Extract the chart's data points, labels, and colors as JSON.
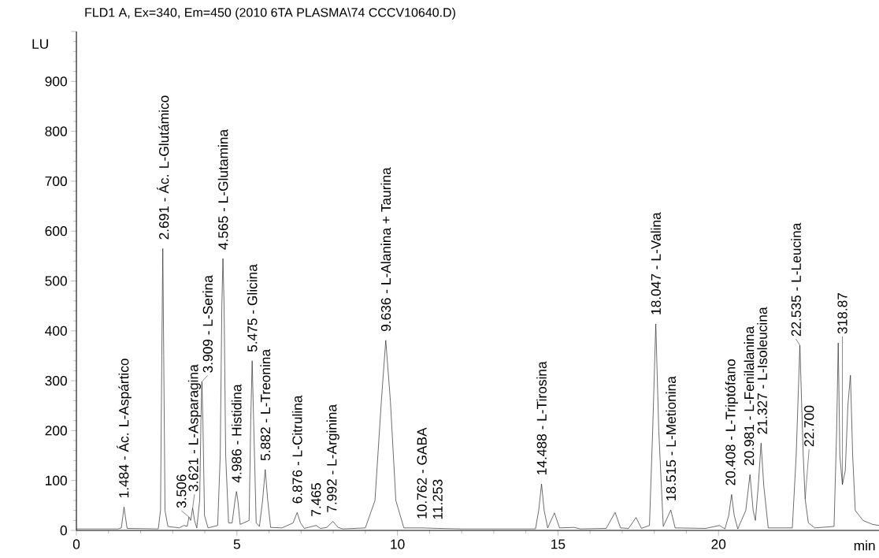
{
  "chart_data": {
    "type": "line",
    "title": "FLD1 A, Ex=340, Em=450 (2010 6TA PLASMA\\74 CCCV10640.D)",
    "xlabel": "min",
    "ylabel": "LU",
    "color": "#222222",
    "line_style": "solid",
    "xlim": [
      0,
      25
    ],
    "ylim": [
      0,
      1000
    ],
    "xticks": [
      0,
      5,
      10,
      15,
      20
    ],
    "yticks": [
      0,
      100,
      200,
      300,
      400,
      500,
      600,
      700,
      800,
      900,
      {
        "value": 1000,
        "label": null
      }
    ],
    "x": [
      0,
      1.3,
      1.4,
      1.45,
      1.484,
      1.52,
      1.58,
      2.55,
      2.62,
      2.66,
      2.691,
      2.72,
      2.76,
      2.85,
      3.2,
      3.35,
      3.45,
      3.506,
      3.56,
      3.621,
      3.68,
      3.75,
      3.84,
      3.88,
      3.909,
      3.94,
      3.99,
      4.1,
      4.4,
      4.48,
      4.53,
      4.565,
      4.6,
      4.65,
      4.74,
      4.85,
      4.94,
      4.986,
      5.03,
      5.1,
      5.38,
      5.43,
      5.475,
      5.52,
      5.6,
      5.7,
      5.8,
      5.882,
      5.96,
      6.05,
      6.4,
      6.75,
      6.876,
      6.98,
      7.1,
      7.465,
      7.6,
      7.8,
      7.992,
      8.15,
      8.3,
      9.0,
      9.3,
      9.5,
      9.636,
      9.78,
      9.95,
      10.2,
      10.762,
      11.253,
      12,
      14.3,
      14.4,
      14.488,
      14.57,
      14.68,
      14.89,
      15.05,
      15.5,
      15.7,
      16.5,
      16.78,
      16.95,
      17.2,
      17.43,
      17.6,
      17.85,
      17.95,
      18.047,
      18.14,
      18.28,
      18.515,
      18.65,
      19.6,
      20.03,
      20.2,
      20.32,
      20.408,
      20.49,
      20.6,
      20.85,
      20.981,
      21.08,
      21.15,
      21.24,
      21.327,
      21.41,
      21.55,
      22.3,
      22.42,
      22.535,
      22.64,
      22.7,
      22.8,
      23.0,
      23.6,
      23.68,
      23.73,
      23.78,
      23.86,
      23.95,
      24.03,
      24.11,
      24.18,
      24.26,
      24.5,
      24.8,
      25.0
    ],
    "values": [
      3,
      3,
      5,
      30,
      47,
      30,
      4,
      3,
      40,
      350,
      565,
      350,
      40,
      8,
      5,
      10,
      8,
      27,
      20,
      45,
      20,
      5,
      60,
      220,
      298,
      220,
      30,
      5,
      10,
      150,
      450,
      545,
      450,
      150,
      15,
      15,
      60,
      78,
      60,
      12,
      20,
      220,
      340,
      220,
      15,
      8,
      60,
      122,
      60,
      6,
      5,
      15,
      36,
      15,
      4,
      10,
      4,
      6,
      18,
      6,
      3,
      5,
      60,
      260,
      381,
      260,
      60,
      5,
      5,
      4,
      3,
      3,
      40,
      93,
      40,
      5,
      35,
      5,
      6,
      3,
      4,
      36,
      5,
      4,
      26,
      4,
      10,
      200,
      414,
      200,
      8,
      41,
      5,
      4,
      10,
      3,
      30,
      72,
      30,
      3,
      40,
      112,
      40,
      20,
      90,
      175,
      90,
      5,
      5,
      150,
      371,
      150,
      63,
      15,
      5,
      8,
      200,
      376,
      150,
      92,
      120,
      250,
      311,
      150,
      40,
      20,
      12,
      10
    ],
    "annotations": [
      {
        "text": "1.484 - Ác. L-Aspártico",
        "x": 1.484,
        "y": 47
      },
      {
        "text": "2.691 - Ác. L-Glutámico",
        "x": 2.691,
        "y": 565
      },
      {
        "text": "3.506",
        "x": 3.506,
        "y": 27
      },
      {
        "text": "3.621 - L-Asparagina",
        "x": 3.621,
        "y": 45
      },
      {
        "text": "3.909 - L-Serina",
        "x": 3.909,
        "y": 298
      },
      {
        "text": "4.565 - L-Glutamina",
        "x": 4.565,
        "y": 545
      },
      {
        "text": "4.986 - Histidina",
        "x": 4.986,
        "y": 78
      },
      {
        "text": "5.475 - Glicina",
        "x": 5.475,
        "y": 340
      },
      {
        "text": "5.882 - L-Treonina",
        "x": 5.882,
        "y": 122
      },
      {
        "text": "6.876 - L-Citrulina",
        "x": 6.876,
        "y": 36
      },
      {
        "text": "7.465",
        "x": 7.465,
        "y": 10
      },
      {
        "text": "7.992 - L-Arginina",
        "x": 7.992,
        "y": 18
      },
      {
        "text": "9.636 - L-Alanina + Taurina",
        "x": 9.636,
        "y": 381
      },
      {
        "text": "10.762 - GABA",
        "x": 10.762,
        "y": 5
      },
      {
        "text": "11.253",
        "x": 11.253,
        "y": 4
      },
      {
        "text": "14.488 - L-Tirosina",
        "x": 14.488,
        "y": 93
      },
      {
        "text": "18.047 - L-Valina",
        "x": 18.047,
        "y": 414
      },
      {
        "text": "18.515 - L-Metionina",
        "x": 18.515,
        "y": 41
      },
      {
        "text": "20.408 - L-Triptófano",
        "x": 20.408,
        "y": 72
      },
      {
        "text": "20.981 - L-Fenilalanina",
        "x": 20.981,
        "y": 112
      },
      {
        "text": "21.327 - L-Isoleucina",
        "x": 21.327,
        "y": 175
      },
      {
        "text": "22.535 - L-Leucina",
        "x": 22.535,
        "y": 371
      },
      {
        "text": "22.700",
        "x": 22.7,
        "y": 63
      },
      {
        "text": "318.87",
        "x": 23.86,
        "y": 92
      }
    ]
  }
}
